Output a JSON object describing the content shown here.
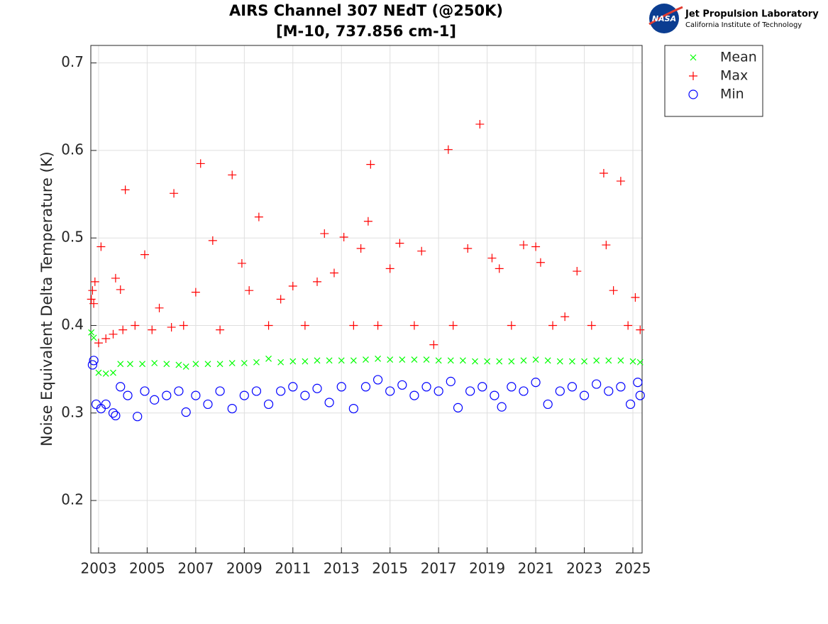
{
  "logo": {
    "badge": "NASA",
    "org": "Jet Propulsion Laboratory",
    "sub": "California Institute of Technology"
  },
  "chart_data": {
    "type": "scatter",
    "title": [
      "AIRS Channel 307 NEdT (@250K)",
      "[M-10, 737.856 cm-1]"
    ],
    "y_label": "Noise Equivalent Delta Temperature (K)",
    "xlim": [
      2002.68,
      2025.38
    ],
    "xticks": [
      2003,
      2005,
      2007,
      2009,
      2011,
      2013,
      2015,
      2017,
      2019,
      2021,
      2023,
      2025
    ],
    "ylim": [
      0.14,
      0.72
    ],
    "yticks": [
      0.2,
      0.3,
      0.4,
      0.5,
      0.6,
      0.7
    ],
    "grid": true,
    "legend": "outside-top-right",
    "series": [
      {
        "name": "Mean",
        "color": "#00ff00",
        "marker": "x",
        "x": [
          2002.7,
          2002.8,
          2003.0,
          2003.3,
          2003.6,
          2003.9,
          2004.3,
          2004.8,
          2005.3,
          2005.8,
          2006.3,
          2006.6,
          2007.0,
          2007.5,
          2008.0,
          2008.5,
          2009.0,
          2009.5,
          2010.0,
          2010.5,
          2011.0,
          2011.5,
          2012.0,
          2012.5,
          2013.0,
          2013.5,
          2014.0,
          2014.5,
          2015.0,
          2015.5,
          2016.0,
          2016.5,
          2017.0,
          2017.5,
          2018.0,
          2018.5,
          2019.0,
          2019.5,
          2020.0,
          2020.5,
          2021.0,
          2021.5,
          2022.0,
          2022.5,
          2023.0,
          2023.5,
          2024.0,
          2024.5,
          2025.0,
          2025.3
        ],
        "values": [
          0.392,
          0.386,
          0.346,
          0.345,
          0.346,
          0.356,
          0.356,
          0.356,
          0.357,
          0.356,
          0.355,
          0.353,
          0.356,
          0.356,
          0.356,
          0.357,
          0.357,
          0.358,
          0.362,
          0.358,
          0.359,
          0.359,
          0.36,
          0.36,
          0.36,
          0.36,
          0.361,
          0.362,
          0.361,
          0.361,
          0.361,
          0.361,
          0.36,
          0.36,
          0.36,
          0.359,
          0.359,
          0.359,
          0.359,
          0.36,
          0.361,
          0.36,
          0.359,
          0.359,
          0.359,
          0.36,
          0.36,
          0.36,
          0.359,
          0.358
        ]
      },
      {
        "name": "Max",
        "color": "#ff0000",
        "marker": "+",
        "x": [
          2002.7,
          2002.75,
          2002.8,
          2002.85,
          2003.0,
          2003.1,
          2003.3,
          2003.6,
          2003.7,
          2003.9,
          2004.0,
          2004.1,
          2004.5,
          2004.9,
          2005.2,
          2005.5,
          2006.0,
          2006.1,
          2006.5,
          2007.0,
          2007.2,
          2007.7,
          2008.0,
          2008.5,
          2008.9,
          2009.2,
          2009.6,
          2010.0,
          2010.5,
          2011.0,
          2011.5,
          2012.0,
          2012.3,
          2012.7,
          2013.1,
          2013.5,
          2013.8,
          2014.1,
          2014.2,
          2014.5,
          2015.0,
          2015.4,
          2016.0,
          2016.3,
          2016.8,
          2017.4,
          2017.6,
          2018.2,
          2018.7,
          2019.2,
          2019.5,
          2020.0,
          2020.5,
          2021.0,
          2021.2,
          2021.7,
          2022.2,
          2022.7,
          2023.3,
          2023.8,
          2023.9,
          2024.2,
          2024.5,
          2024.8,
          2025.1,
          2025.3
        ],
        "values": [
          0.43,
          0.44,
          0.425,
          0.45,
          0.38,
          0.49,
          0.385,
          0.39,
          0.454,
          0.441,
          0.395,
          0.555,
          0.4,
          0.481,
          0.395,
          0.42,
          0.398,
          0.551,
          0.4,
          0.438,
          0.585,
          0.497,
          0.395,
          0.572,
          0.471,
          0.44,
          0.524,
          0.4,
          0.43,
          0.445,
          0.4,
          0.45,
          0.505,
          0.46,
          0.501,
          0.4,
          0.488,
          0.519,
          0.584,
          0.4,
          0.465,
          0.494,
          0.4,
          0.485,
          0.378,
          0.601,
          0.4,
          0.488,
          0.63,
          0.477,
          0.465,
          0.4,
          0.492,
          0.49,
          0.472,
          0.4,
          0.41,
          0.462,
          0.4,
          0.574,
          0.492,
          0.44,
          0.565,
          0.4,
          0.432,
          0.395
        ]
      },
      {
        "name": "Min",
        "color": "#0000ff",
        "marker": "o",
        "x": [
          2002.75,
          2002.8,
          2002.9,
          2003.1,
          2003.3,
          2003.6,
          2003.7,
          2003.9,
          2004.2,
          2004.6,
          2004.9,
          2005.3,
          2005.8,
          2006.3,
          2006.6,
          2007.0,
          2007.5,
          2008.0,
          2008.5,
          2009.0,
          2009.5,
          2010.0,
          2010.5,
          2011.0,
          2011.5,
          2012.0,
          2012.5,
          2013.0,
          2013.5,
          2014.0,
          2014.5,
          2015.0,
          2015.5,
          2016.0,
          2016.5,
          2017.0,
          2017.5,
          2017.8,
          2018.3,
          2018.8,
          2019.3,
          2019.6,
          2020.0,
          2020.5,
          2021.0,
          2021.5,
          2022.0,
          2022.5,
          2023.0,
          2023.5,
          2024.0,
          2024.5,
          2024.9,
          2025.2,
          2025.3
        ],
        "values": [
          0.355,
          0.36,
          0.31,
          0.305,
          0.31,
          0.3,
          0.297,
          0.33,
          0.32,
          0.296,
          0.325,
          0.315,
          0.32,
          0.325,
          0.301,
          0.32,
          0.31,
          0.325,
          0.305,
          0.32,
          0.325,
          0.31,
          0.325,
          0.33,
          0.32,
          0.328,
          0.312,
          0.33,
          0.305,
          0.33,
          0.338,
          0.325,
          0.332,
          0.32,
          0.33,
          0.325,
          0.336,
          0.306,
          0.325,
          0.33,
          0.32,
          0.307,
          0.33,
          0.325,
          0.335,
          0.31,
          0.325,
          0.33,
          0.32,
          0.333,
          0.325,
          0.33,
          0.31,
          0.335,
          0.32
        ]
      }
    ]
  }
}
